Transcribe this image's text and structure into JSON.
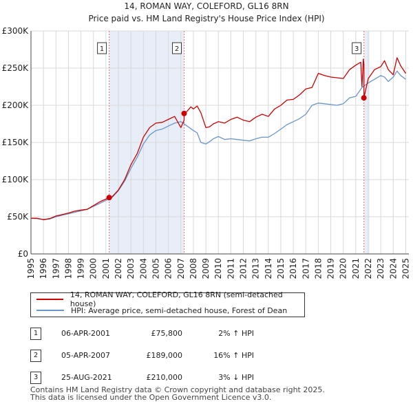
{
  "chart_data": {
    "type": "line",
    "title": "14, ROMAN WAY, COLEFORD, GL16 8RN",
    "subtitle": "Price paid vs. HM Land Registry's House Price Index (HPI)",
    "ylim": [
      0,
      300000
    ],
    "xlim": [
      1995,
      2025.25
    ],
    "y_ticks": [
      {
        "value": 0,
        "label": "£0"
      },
      {
        "value": 50000,
        "label": "£50K"
      },
      {
        "value": 100000,
        "label": "£100K"
      },
      {
        "value": 150000,
        "label": "£150K"
      },
      {
        "value": 200000,
        "label": "£200K"
      },
      {
        "value": 250000,
        "label": "£250K"
      },
      {
        "value": 300000,
        "label": "£300K"
      }
    ],
    "x_ticks": [
      "1995",
      "1996",
      "1997",
      "1998",
      "1999",
      "2000",
      "2001",
      "2002",
      "2003",
      "2004",
      "2005",
      "2006",
      "2007",
      "2008",
      "2009",
      "2010",
      "2011",
      "2012",
      "2013",
      "2014",
      "2015",
      "2016",
      "2017",
      "2018",
      "2019",
      "2020",
      "2021",
      "2022",
      "2023",
      "2024",
      "2025"
    ],
    "colors": {
      "red": "#cc0000",
      "blue": "#6a94cc",
      "shade": "#e8eef8",
      "grid": "#d8d8d8",
      "marker_line": "#e07070"
    },
    "series": [
      {
        "name": "14, ROMAN WAY, COLEFORD, GL16 8RN (semi-detached house)",
        "color": "#cc0000",
        "x": [
          1995,
          1995.5,
          1996,
          1996.5,
          1997,
          1997.5,
          1998,
          1998.5,
          1999,
          1999.5,
          2000,
          2000.5,
          2001.26,
          2001.26,
          2001.5,
          2002,
          2002.5,
          2003,
          2003.5,
          2004,
          2004.5,
          2005,
          2005.5,
          2006,
          2006.5,
          2007,
          2007.26,
          2007.26,
          2007.5,
          2007.8,
          2008,
          2008.3,
          2008.6,
          2009,
          2009.3,
          2009.6,
          2010,
          2010.5,
          2011,
          2011.5,
          2012,
          2012.5,
          2013,
          2013.5,
          2014,
          2014.5,
          2015,
          2015.5,
          2016,
          2016.5,
          2017,
          2017.5,
          2018,
          2018.5,
          2019,
          2019.5,
          2020,
          2020.5,
          2021,
          2021.4,
          2021.5,
          2021.6,
          2021.65,
          2021.65,
          2022,
          2022.5,
          2023,
          2023.3,
          2023.6,
          2024,
          2024.3,
          2024.6,
          2025
        ],
        "values": [
          48000,
          48000,
          46000,
          47500,
          51000,
          53000,
          55000,
          57500,
          59000,
          60000,
          65000,
          70000,
          75800,
          75800,
          77000,
          86000,
          100000,
          120000,
          135000,
          157000,
          170000,
          176000,
          177000,
          181000,
          185000,
          170000,
          180000,
          189000,
          192000,
          198000,
          195000,
          199000,
          190000,
          170000,
          171000,
          175000,
          178000,
          176000,
          181000,
          184000,
          180000,
          178000,
          184000,
          188000,
          185000,
          195000,
          200000,
          207000,
          208000,
          214000,
          222000,
          224000,
          243000,
          240000,
          238000,
          237000,
          236000,
          248000,
          254000,
          258000,
          225000,
          262000,
          255000,
          210000,
          236000,
          248000,
          252000,
          260000,
          248000,
          241000,
          264000,
          253000,
          243000
        ]
      },
      {
        "name": "HPI: Average price, semi-detached house, Forest of Dean",
        "color": "#6a94cc",
        "x": [
          1995,
          1995.5,
          1996,
          1996.5,
          1997,
          1997.5,
          1998,
          1998.5,
          1999,
          1999.5,
          2000,
          2000.5,
          2001,
          2001.5,
          2002,
          2002.5,
          2003,
          2003.5,
          2004,
          2004.5,
          2005,
          2005.5,
          2006,
          2006.5,
          2007,
          2007.5,
          2008,
          2008.3,
          2008.6,
          2009,
          2009.3,
          2009.6,
          2010,
          2010.5,
          2011,
          2011.5,
          2012,
          2012.5,
          2013,
          2013.5,
          2014,
          2014.5,
          2015,
          2015.5,
          2016,
          2016.5,
          2017,
          2017.5,
          2018,
          2018.5,
          2019,
          2019.5,
          2020,
          2020.5,
          2021,
          2021.5,
          2022,
          2022.5,
          2023,
          2023.3,
          2023.6,
          2024,
          2024.3,
          2024.6,
          2025
        ],
        "values": [
          48000,
          47500,
          46500,
          47000,
          50000,
          52000,
          54000,
          56000,
          58000,
          60000,
          64000,
          68000,
          72000,
          76000,
          85000,
          98000,
          115000,
          130000,
          148000,
          160000,
          166000,
          168000,
          172000,
          176000,
          178000,
          172000,
          166000,
          163000,
          150000,
          148000,
          151000,
          155000,
          158000,
          154000,
          155000,
          154000,
          153000,
          152000,
          155000,
          157000,
          157000,
          162000,
          168000,
          174000,
          178000,
          182000,
          188000,
          200000,
          203000,
          202000,
          201000,
          200000,
          202000,
          210000,
          212000,
          224000,
          230000,
          235000,
          240000,
          238000,
          232000,
          238000,
          246000,
          240000,
          235000
        ]
      }
    ],
    "sales": [
      {
        "num": "1",
        "x": 2001.26,
        "value": 75800,
        "date": "06-APR-2001",
        "price": "£75,800",
        "hpi": "2% ↑ HPI"
      },
      {
        "num": "2",
        "x": 2007.26,
        "value": 189000,
        "date": "05-APR-2007",
        "price": "£189,000",
        "hpi": "16% ↑ HPI"
      },
      {
        "num": "3",
        "x": 2021.65,
        "value": 210000,
        "date": "25-AUG-2021",
        "price": "£210,000",
        "hpi": "3% ↓ HPI"
      }
    ],
    "shaded_ranges": [
      [
        2001.26,
        2007.26
      ],
      [
        2021.65,
        2022.1
      ]
    ]
  },
  "legend": {
    "red_label": "14, ROMAN WAY, COLEFORD, GL16 8RN (semi-detached house)",
    "blue_label": "HPI: Average price, semi-detached house, Forest of Dean"
  },
  "footer": {
    "line1": "Contains HM Land Registry data © Crown copyright and database right 2025.",
    "line2": "This data is licensed under the Open Government Licence v3.0."
  }
}
